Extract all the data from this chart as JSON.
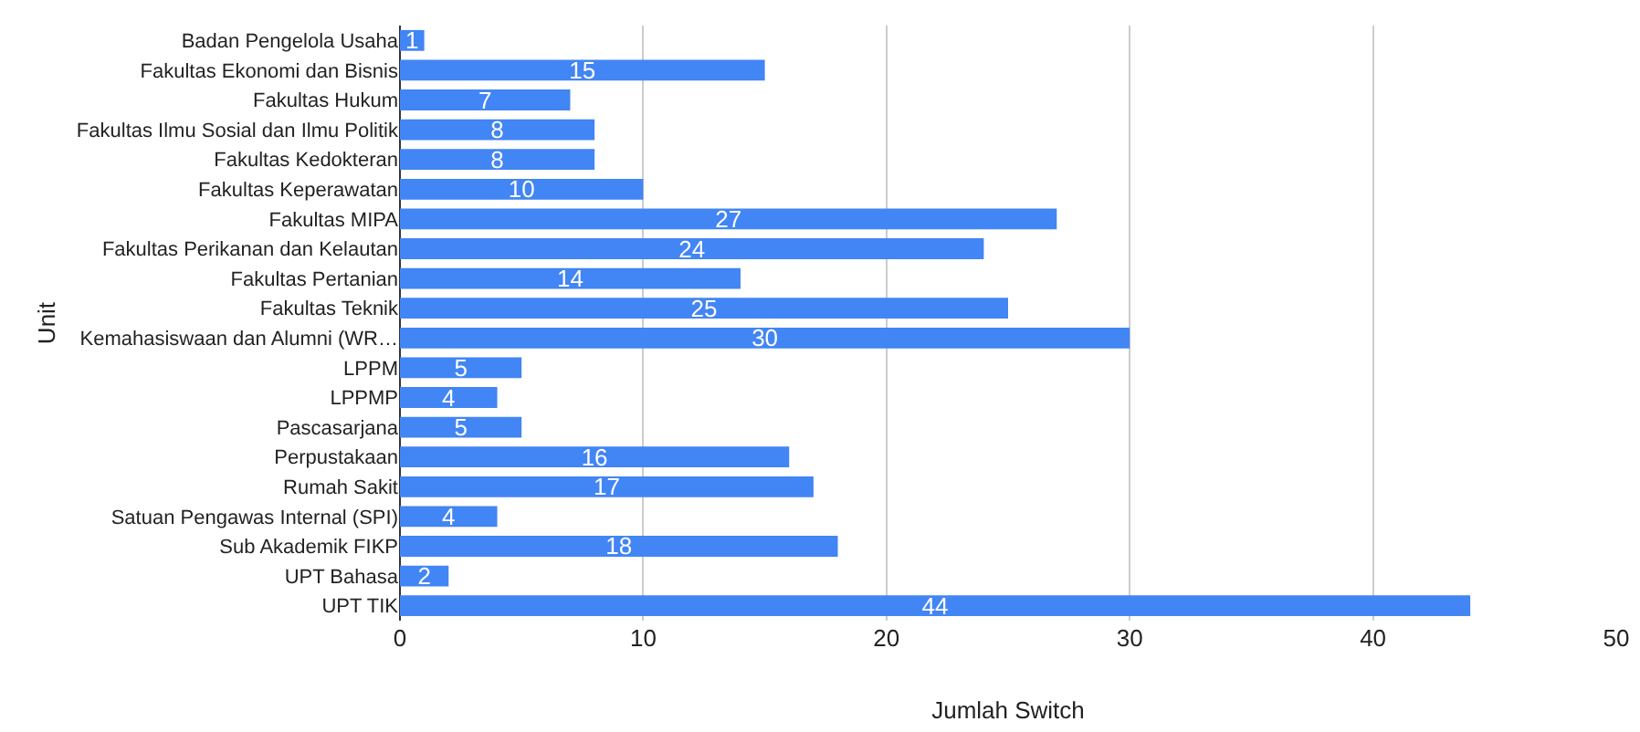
{
  "chart_data": {
    "type": "bar",
    "orientation": "horizontal",
    "xlabel": "Jumlah Switch",
    "ylabel": "Unit",
    "categories": [
      "Badan Pengelola Usaha",
      "Fakultas Ekonomi dan Bisnis",
      "Fakultas Hukum",
      "Fakultas Ilmu Sosial dan Ilmu Politik",
      "Fakultas Kedokteran",
      "Fakultas Keperawatan",
      "Fakultas MIPA",
      "Fakultas Perikanan dan Kelautan",
      "Fakultas Pertanian",
      "Fakultas Teknik",
      "Kemahasiswaan dan Alumni (WR…",
      "LPPM",
      "LPPMP",
      "Pascasarjana",
      "Perpustakaan",
      "Rumah Sakit",
      "Satuan Pengawas Internal (SPI)",
      "Sub Akademik FIKP",
      "UPT Bahasa",
      "UPT TIK"
    ],
    "values": [
      1,
      15,
      7,
      8,
      8,
      10,
      27,
      24,
      14,
      25,
      30,
      5,
      4,
      5,
      16,
      17,
      4,
      18,
      2,
      44
    ],
    "color": "#4285f4",
    "xlim": [
      0,
      50
    ],
    "xticks": [
      0,
      10,
      20,
      30,
      40,
      50
    ],
    "grid": "x",
    "data_labels": true
  }
}
